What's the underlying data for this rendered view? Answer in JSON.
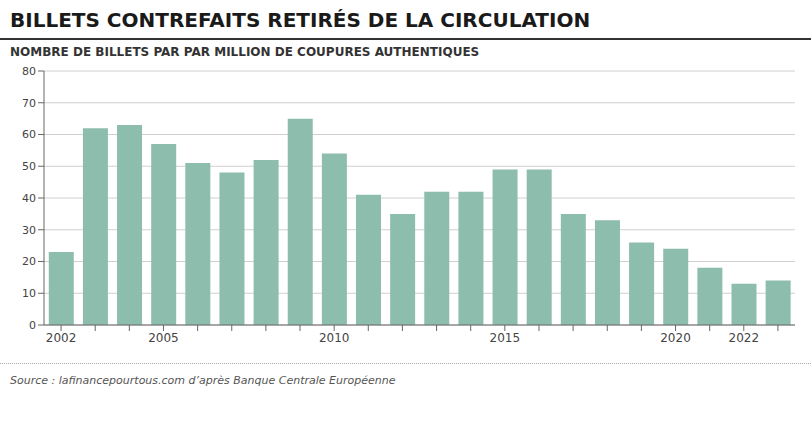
{
  "chart_data": {
    "type": "bar",
    "title": "BILLETS CONTREFAITS RETIRÉS DE LA CIRCULATION",
    "subtitle": "NOMBRE DE BILLETS PAR PAR MILLION DE COUPURES AUTHENTIQUES",
    "source": "Source : lafinancepourtous.com d’après Banque Centrale Européenne",
    "categories": [
      "2002",
      null,
      null,
      "2005",
      null,
      null,
      null,
      null,
      "2010",
      null,
      null,
      null,
      null,
      "2015",
      null,
      null,
      null,
      null,
      "2020",
      null,
      "2022",
      null
    ],
    "values": [
      23,
      62,
      63,
      57,
      51,
      48,
      52,
      65,
      54,
      41,
      35,
      42,
      42,
      49,
      49,
      35,
      33,
      26,
      24,
      18,
      13,
      14
    ],
    "color": "#8dbdad",
    "ylim": [
      0,
      80
    ],
    "yticks": [
      0,
      10,
      20,
      30,
      40,
      50,
      60,
      70,
      80
    ],
    "grid": true
  }
}
